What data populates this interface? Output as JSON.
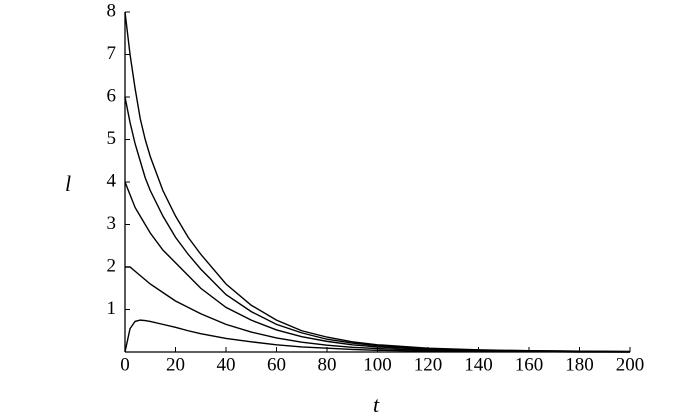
{
  "chart_data": {
    "type": "line",
    "x_label": "t",
    "y_label": "l",
    "x": [
      0,
      2,
      4,
      6,
      8,
      10,
      15,
      20,
      25,
      30,
      40,
      50,
      60,
      70,
      80,
      90,
      100,
      120,
      140,
      160,
      180,
      200
    ],
    "series": [
      {
        "color": "#000000",
        "values": [
          8,
          7.0,
          6.2,
          5.5,
          5.0,
          4.6,
          3.8,
          3.2,
          2.7,
          2.3,
          1.6,
          1.1,
          0.75,
          0.5,
          0.35,
          0.24,
          0.17,
          0.09,
          0.05,
          0.03,
          0.02,
          0.01
        ]
      },
      {
        "color": "#000000",
        "values": [
          6,
          5.4,
          4.9,
          4.5,
          4.1,
          3.8,
          3.2,
          2.7,
          2.3,
          1.95,
          1.35,
          0.95,
          0.65,
          0.45,
          0.3,
          0.21,
          0.15,
          0.08,
          0.04,
          0.03,
          0.02,
          0.01
        ]
      },
      {
        "color": "#000000",
        "values": [
          4,
          3.7,
          3.4,
          3.2,
          3.0,
          2.8,
          2.4,
          2.1,
          1.8,
          1.5,
          1.05,
          0.75,
          0.52,
          0.36,
          0.25,
          0.17,
          0.12,
          0.06,
          0.03,
          0.02,
          0.01,
          0.01
        ]
      },
      {
        "color": "#000000",
        "values": [
          2,
          2.0,
          1.9,
          1.8,
          1.7,
          1.6,
          1.4,
          1.2,
          1.05,
          0.9,
          0.65,
          0.47,
          0.33,
          0.23,
          0.16,
          0.11,
          0.08,
          0.04,
          0.02,
          0.01,
          0.01,
          0
        ]
      },
      {
        "color": "#000000",
        "values": [
          0,
          0.55,
          0.72,
          0.75,
          0.74,
          0.72,
          0.65,
          0.58,
          0.5,
          0.43,
          0.32,
          0.24,
          0.17,
          0.12,
          0.09,
          0.06,
          0.04,
          0.02,
          0.01,
          0.01,
          0,
          0
        ]
      }
    ],
    "xlim": [
      0,
      200
    ],
    "xticks": [
      0,
      20,
      40,
      60,
      80,
      100,
      120,
      140,
      160,
      180,
      200
    ],
    "ylim": [
      0,
      8
    ],
    "yticks": [
      1,
      2,
      3,
      4,
      5,
      6,
      7,
      8
    ],
    "grid": false
  }
}
